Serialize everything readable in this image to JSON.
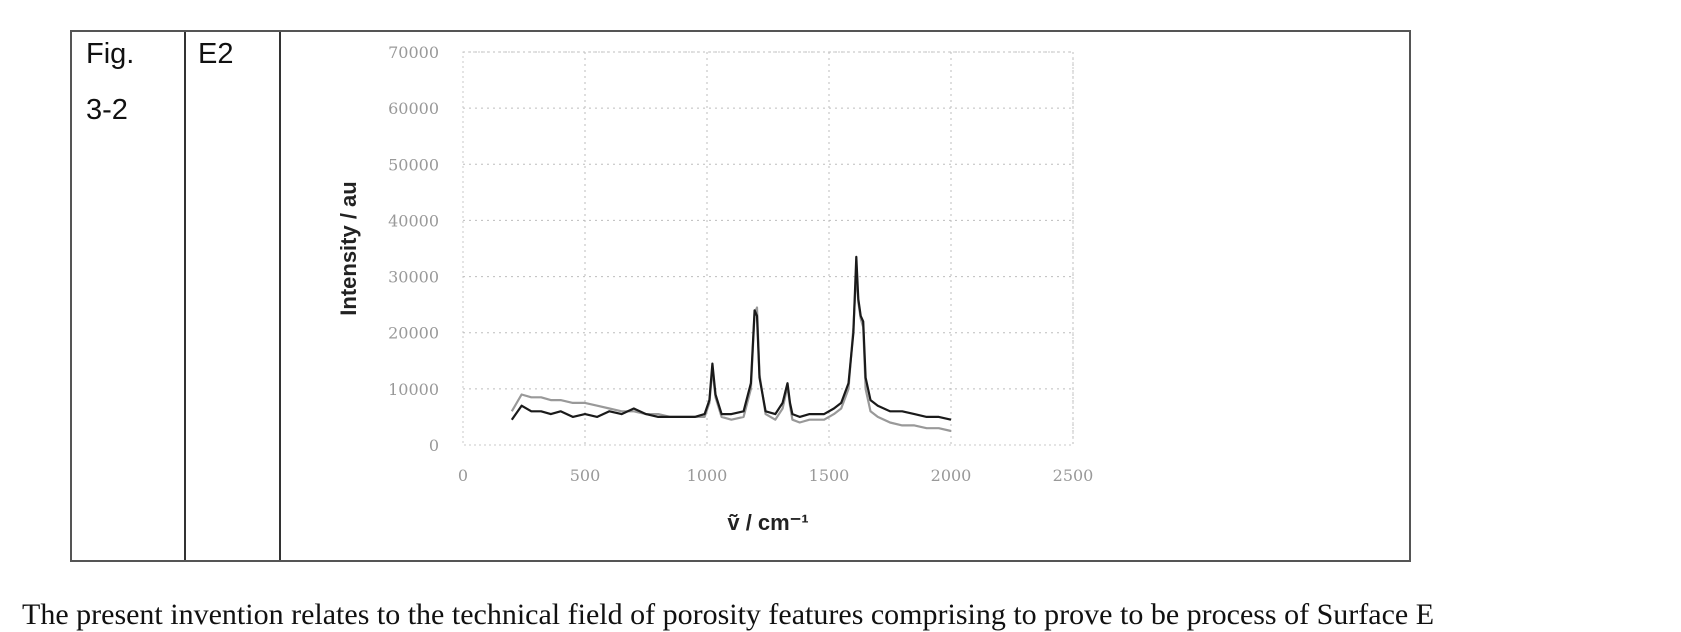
{
  "table": {
    "fig_label_line1": "Fig.",
    "fig_label_line2": "3-2",
    "example_label": "E2"
  },
  "caption_text": "The present invention relates to the technical field of porosity features comprising to prove to be process of Surface E",
  "chart_data": {
    "type": "line",
    "title": "",
    "xlabel": "ṽ / cm⁻¹",
    "ylabel": "Intensity / au",
    "xlim": [
      0,
      2500
    ],
    "ylim": [
      0,
      70000
    ],
    "x_ticks": [
      "0",
      "500",
      "1000",
      "1500",
      "2000",
      "2500"
    ],
    "y_ticks": [
      "0",
      "10000",
      "20000",
      "30000",
      "40000",
      "50000",
      "60000",
      "70000"
    ],
    "grid": true,
    "legend": "none",
    "series": [
      {
        "color": "#1a1a1a",
        "x": [
          200,
          240,
          280,
          320,
          360,
          400,
          450,
          500,
          550,
          600,
          650,
          700,
          750,
          800,
          850,
          900,
          950,
          990,
          1010,
          1022,
          1035,
          1060,
          1100,
          1150,
          1180,
          1195,
          1205,
          1215,
          1240,
          1280,
          1310,
          1330,
          1340,
          1350,
          1380,
          1420,
          1480,
          1520,
          1550,
          1580,
          1600,
          1612,
          1620,
          1630,
          1640,
          1650,
          1670,
          1700,
          1750,
          1800,
          1850,
          1900,
          1950,
          2000
        ],
        "y": [
          4500,
          7000,
          6000,
          6000,
          5500,
          6000,
          5000,
          5500,
          5000,
          6000,
          5500,
          6500,
          5500,
          5000,
          5000,
          5000,
          5000,
          5500,
          8000,
          14500,
          9000,
          5500,
          5500,
          6000,
          11000,
          24000,
          23000,
          12000,
          6000,
          5500,
          7500,
          11000,
          7500,
          5500,
          5000,
          5500,
          5500,
          6500,
          7500,
          11000,
          20000,
          33500,
          26000,
          23000,
          22000,
          12000,
          8000,
          7000,
          6000,
          6000,
          5500,
          5000,
          5000,
          4500
        ]
      },
      {
        "color": "#999999",
        "x": [
          200,
          240,
          280,
          320,
          360,
          400,
          450,
          500,
          550,
          600,
          650,
          700,
          750,
          800,
          850,
          900,
          950,
          990,
          1010,
          1022,
          1035,
          1060,
          1100,
          1150,
          1180,
          1195,
          1205,
          1215,
          1240,
          1280,
          1310,
          1330,
          1340,
          1350,
          1380,
          1420,
          1480,
          1520,
          1550,
          1580,
          1600,
          1612,
          1620,
          1630,
          1640,
          1650,
          1670,
          1700,
          1750,
          1800,
          1850,
          1900,
          1950,
          2000
        ],
        "y": [
          6000,
          9000,
          8500,
          8500,
          8000,
          8000,
          7500,
          7500,
          7000,
          6500,
          6000,
          6000,
          5500,
          5500,
          5000,
          5000,
          5000,
          5000,
          7500,
          13500,
          8500,
          5000,
          4500,
          5000,
          10000,
          23500,
          24500,
          12500,
          5500,
          4500,
          6500,
          10500,
          7000,
          4500,
          4000,
          4500,
          4500,
          5500,
          6500,
          10000,
          21000,
          31000,
          25500,
          22500,
          21000,
          10000,
          6000,
          5000,
          4000,
          3500,
          3500,
          3000,
          3000,
          2500
        ]
      }
    ]
  }
}
